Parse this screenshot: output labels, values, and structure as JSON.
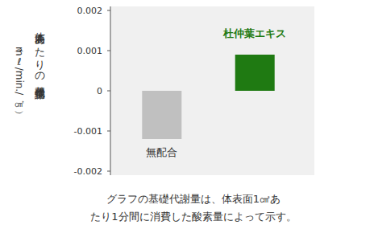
{
  "chart_data": {
    "type": "bar",
    "ylabel": "体表面あたりの基礎代謝量",
    "yunit": "（mℓ/min./㎠）",
    "categories": [
      "無配合",
      "杜仲葉エキス"
    ],
    "values": [
      -0.0012,
      0.0009
    ],
    "colors": [
      "#c0c0c0",
      "#1f7a12"
    ],
    "ylim": [
      -0.002,
      0.002
    ],
    "yticks": [
      -0.002,
      -0.001,
      0,
      0.001,
      0.002
    ],
    "grid": false,
    "caption": [
      "グラフの基礎代謝量は、体表面1㎠あ",
      "たり1分間に消費した酸素量によって示す。"
    ]
  }
}
